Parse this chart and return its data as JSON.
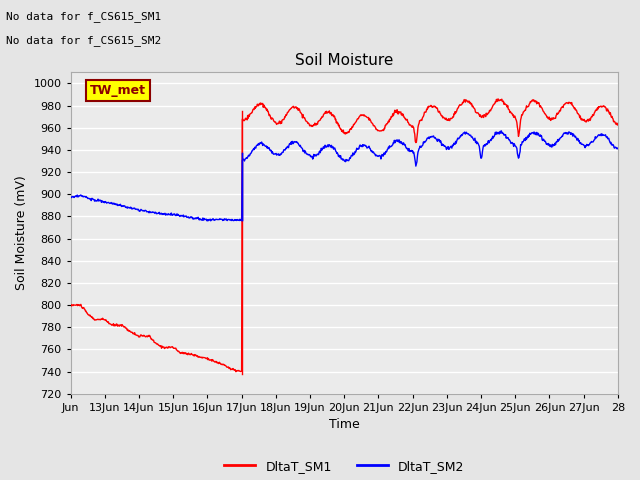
{
  "title": "Soil Moisture",
  "ylabel": "Soil Moisture (mV)",
  "xlabel": "Time",
  "annotations": [
    "No data for f_CS615_SM1",
    "No data for f_CS615_SM2"
  ],
  "legend_box_label": "TW_met",
  "legend_entries": [
    "DltaT_SM1",
    "DltaT_SM2"
  ],
  "ylim": [
    720,
    1010
  ],
  "yticks": [
    720,
    740,
    760,
    780,
    800,
    820,
    840,
    860,
    880,
    900,
    920,
    940,
    960,
    980,
    1000
  ],
  "background_color": "#e5e5e5",
  "plot_bg_color": "#ebebeb",
  "grid_color": "white",
  "title_fontsize": 11,
  "label_fontsize": 9,
  "tick_fontsize": 8
}
